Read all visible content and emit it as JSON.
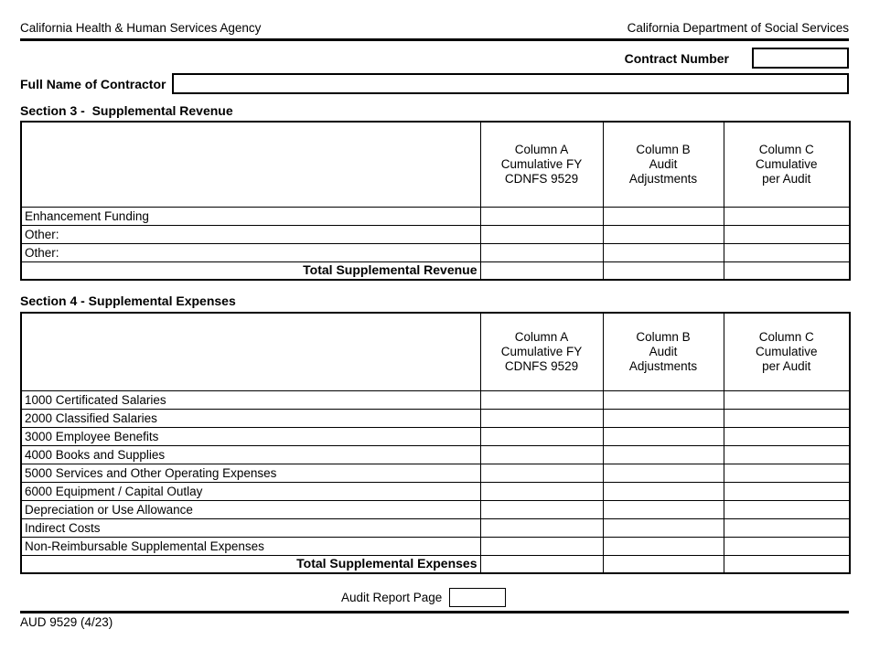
{
  "header": {
    "left": "California Health & Human Services Agency",
    "right": "California Department of Social Services"
  },
  "contract": {
    "label": "Contract Number",
    "value": ""
  },
  "contractor": {
    "label": "Full Name of Contractor",
    "value": ""
  },
  "sections": [
    {
      "title": "Section 3 -  Supplemental Revenue",
      "columns": [
        "Column A\nCumulative FY\nCDNFS 9529",
        "Column B\nAudit\nAdjustments",
        "Column C\nCumulative\nper Audit"
      ],
      "rows": [
        "Enhancement Funding",
        "Other:",
        "Other:"
      ],
      "total_label": "Total Supplemental Revenue"
    },
    {
      "title": "Section 4 - Supplemental Expenses",
      "columns": [
        "Column A\nCumulative FY\nCDNFS 9529",
        "Column B\nAudit\nAdjustments",
        "Column C\nCumulative\nper Audit"
      ],
      "rows": [
        "1000 Certificated Salaries",
        "2000 Classified Salaries",
        "3000 Employee Benefits",
        "4000 Books and Supplies",
        "5000 Services and Other Operating Expenses",
        "6000 Equipment / Capital Outlay",
        "Depreciation or Use Allowance",
        "Indirect Costs",
        "Non-Reimbursable Supplemental Expenses"
      ],
      "total_label": "Total Supplemental Expenses"
    }
  ],
  "audit": {
    "label": "Audit Report Page",
    "value": ""
  },
  "footer": {
    "form_number": "AUD 9529 (4/23)"
  }
}
